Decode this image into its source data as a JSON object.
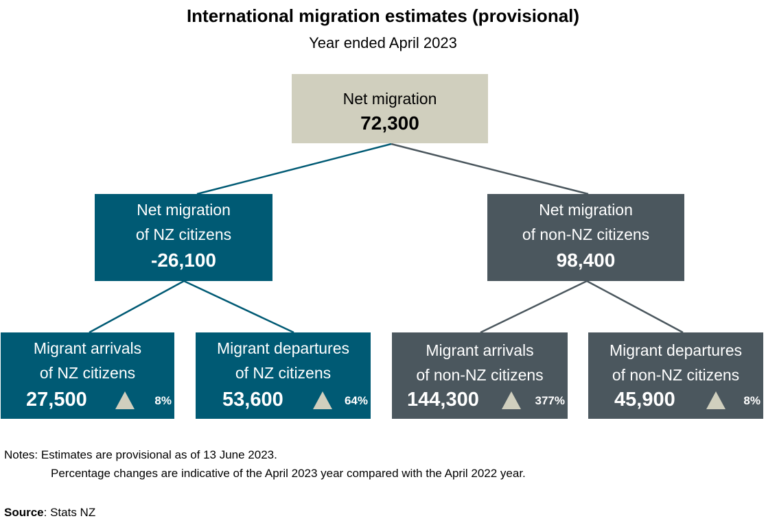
{
  "title": "International migration estimates (provisional)",
  "subtitle": "Year ended April 2023",
  "colors": {
    "nz": "#005a74",
    "non_nz": "#4b575e",
    "total": "#d0cfbe",
    "arrow": "#d0cfbe"
  },
  "root": {
    "label": "Net migration",
    "value": "72,300"
  },
  "nz": {
    "label1": "Net migration",
    "label2": "of NZ citizens",
    "value": "-26,100",
    "arrivals": {
      "label1": "Migrant arrivals",
      "label2": "of NZ citizens",
      "value": "27,500",
      "change": "8%",
      "direction": "up"
    },
    "departures": {
      "label1": "Migrant departures",
      "label2": "of NZ citizens",
      "value": "53,600",
      "change": "64%",
      "direction": "up"
    }
  },
  "non_nz": {
    "label1": "Net migration",
    "label2": "of non-NZ citizens",
    "value": "98,400",
    "arrivals": {
      "label1": "Migrant arrivals",
      "label2": "of non-NZ citizens",
      "value": "144,300",
      "change": "377%",
      "direction": "up"
    },
    "departures": {
      "label1": "Migrant departures",
      "label2": "of non-NZ citizens",
      "value": "45,900",
      "change": "8%",
      "direction": "up"
    }
  },
  "notes": {
    "prefix": "Notes:",
    "line1": "Estimates are provisional as of 13 June 2023.",
    "line2": "Percentage changes are indicative of the April 2023 year compared with the April 2022 year."
  },
  "source": {
    "label": "Source",
    "text": ": Stats NZ"
  }
}
